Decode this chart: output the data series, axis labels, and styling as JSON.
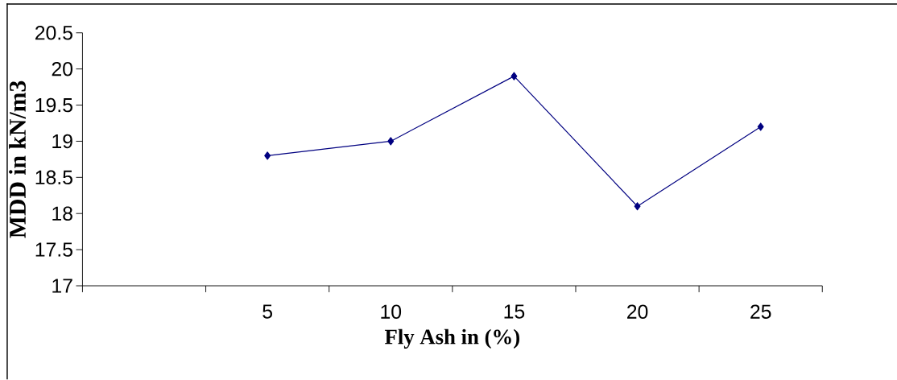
{
  "chart_data": {
    "type": "line",
    "xlabel": "Fly Ash in (%)",
    "ylabel": "MDD in kN/m3",
    "categories": [
      null,
      "5",
      "10",
      "15",
      "20",
      "25"
    ],
    "values": [
      null,
      18.8,
      19.0,
      19.9,
      18.1,
      19.2
    ],
    "color": "#000080",
    "marker": "diamond",
    "line_style": "solid",
    "ylim": [
      17,
      20.5
    ],
    "yticks": [
      17,
      17.5,
      18,
      18.5,
      19,
      19.5,
      20,
      20.5
    ]
  }
}
